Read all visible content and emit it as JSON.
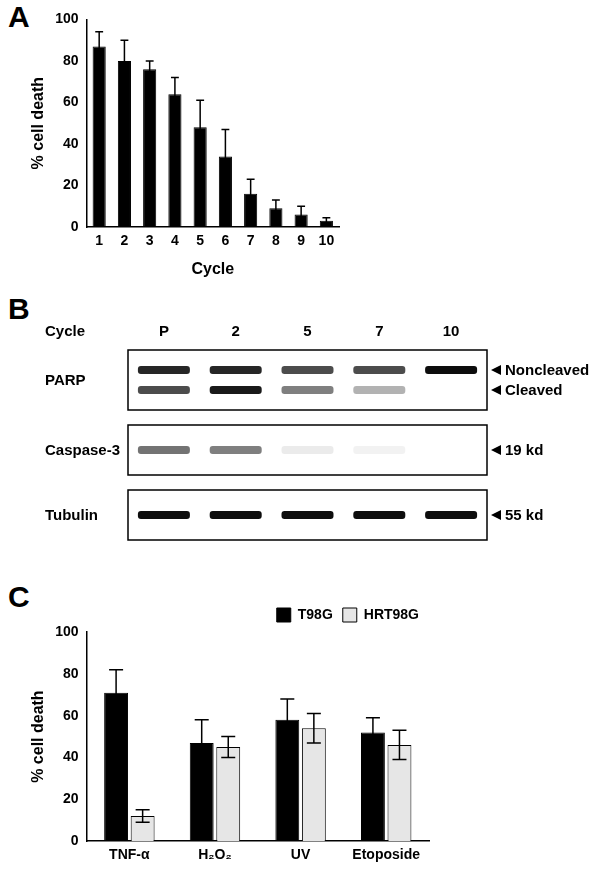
{
  "panel_labels": [
    "A",
    "B",
    "C"
  ],
  "chart_data": [
    {
      "type": "bar",
      "x_label": "Cycle",
      "y_label": "% cell death",
      "categories": [
        "1",
        "2",
        "3",
        "4",
        "5",
        "6",
        "7",
        "8",
        "9",
        "10"
      ],
      "values": [
        87,
        80,
        76,
        64,
        48,
        34,
        16,
        9,
        6,
        3
      ],
      "errors": [
        7,
        10,
        4,
        8,
        13,
        13,
        7,
        4,
        4,
        1.5
      ],
      "color": "#000000",
      "ylim": [
        0,
        100
      ],
      "yticks": [
        0,
        20,
        40,
        60,
        80,
        100
      ],
      "grid": false
    },
    {
      "type": "bar",
      "y_label": "% cell death",
      "categories": [
        "TNF-α",
        "H₂O₂",
        "UV",
        "Etoposide"
      ],
      "series": [
        {
          "name": "T98G",
          "color": "#000000",
          "values": [
            71,
            47,
            58,
            52
          ],
          "errors": [
            11,
            11,
            10,
            7
          ]
        },
        {
          "name": "HRT98G",
          "color": "#e6e6e6",
          "values": [
            12,
            45,
            54,
            46
          ],
          "errors": [
            3,
            5,
            7,
            7
          ]
        }
      ],
      "ylim": [
        0,
        100
      ],
      "yticks": [
        0,
        20,
        40,
        60,
        80,
        100
      ],
      "grid": false,
      "legend": "upper right"
    }
  ],
  "blot": {
    "x_label": "Cycle",
    "lanes": [
      "P",
      "2",
      "5",
      "7",
      "10"
    ],
    "panels": [
      {
        "label": "PARP",
        "bands": [
          {
            "label": "Noncleaved",
            "intensity": [
              0.85,
              0.85,
              0.7,
              0.7,
              0.95
            ]
          },
          {
            "label": "Cleaved",
            "intensity": [
              0.7,
              0.9,
              0.5,
              0.3,
              0
            ]
          }
        ]
      },
      {
        "label": "Caspase-3",
        "bands": [
          {
            "label": "19 kd",
            "intensity": [
              0.55,
              0.5,
              0.08,
              0.05,
              0
            ]
          }
        ]
      },
      {
        "label": "Tubulin",
        "bands": [
          {
            "label": "55 kd",
            "intensity": [
              0.95,
              0.95,
              0.95,
              0.95,
              0.95
            ]
          }
        ]
      }
    ]
  }
}
